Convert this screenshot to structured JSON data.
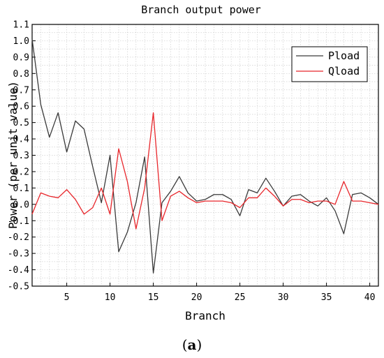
{
  "chart_data": {
    "type": "line",
    "title": "Branch output power",
    "xlabel": "Branch",
    "ylabel": "Power (per unit value)",
    "xlim": [
      1,
      41
    ],
    "ylim": [
      -0.5,
      1.1
    ],
    "xticks": [
      5,
      10,
      15,
      20,
      25,
      30,
      35,
      40
    ],
    "yticks": [
      -0.5,
      -0.4,
      -0.3,
      -0.2,
      -0.1,
      0.0,
      0.1,
      0.2,
      0.3,
      0.4,
      0.5,
      0.6,
      0.7,
      0.8,
      0.9,
      1.0,
      1.1
    ],
    "grid": true,
    "legend_position": "top-right",
    "x": [
      1,
      2,
      3,
      4,
      5,
      6,
      7,
      8,
      9,
      10,
      11,
      12,
      13,
      14,
      15,
      16,
      17,
      18,
      19,
      20,
      21,
      22,
      23,
      24,
      25,
      26,
      27,
      28,
      29,
      30,
      31,
      32,
      33,
      34,
      35,
      36,
      37,
      38,
      39,
      40,
      41
    ],
    "series": [
      {
        "name": "Pload",
        "color": "#3a3a3a",
        "values": [
          1.01,
          0.61,
          0.41,
          0.56,
          0.32,
          0.51,
          0.46,
          0.23,
          0.01,
          0.3,
          -0.29,
          -0.17,
          0.01,
          0.29,
          -0.42,
          0.01,
          0.08,
          0.17,
          0.07,
          0.02,
          0.03,
          0.06,
          0.06,
          0.03,
          -0.07,
          0.09,
          0.07,
          0.16,
          0.08,
          -0.01,
          0.05,
          0.06,
          0.02,
          -0.01,
          0.04,
          -0.04,
          -0.18,
          0.06,
          0.07,
          0.04,
          0.0
        ]
      },
      {
        "name": "Qload",
        "color": "#e8262b",
        "values": [
          -0.06,
          0.07,
          0.05,
          0.04,
          0.09,
          0.03,
          -0.06,
          -0.02,
          0.1,
          -0.06,
          0.34,
          0.14,
          -0.15,
          0.1,
          0.56,
          -0.1,
          0.05,
          0.08,
          0.04,
          0.01,
          0.02,
          0.02,
          0.02,
          0.01,
          -0.02,
          0.04,
          0.04,
          0.1,
          0.05,
          -0.01,
          0.03,
          0.03,
          0.01,
          0.02,
          0.02,
          0.0,
          0.14,
          0.02,
          0.02,
          0.01,
          0.0
        ]
      }
    ]
  },
  "caption": {
    "open": "(",
    "letter": "a",
    "close": ")"
  }
}
